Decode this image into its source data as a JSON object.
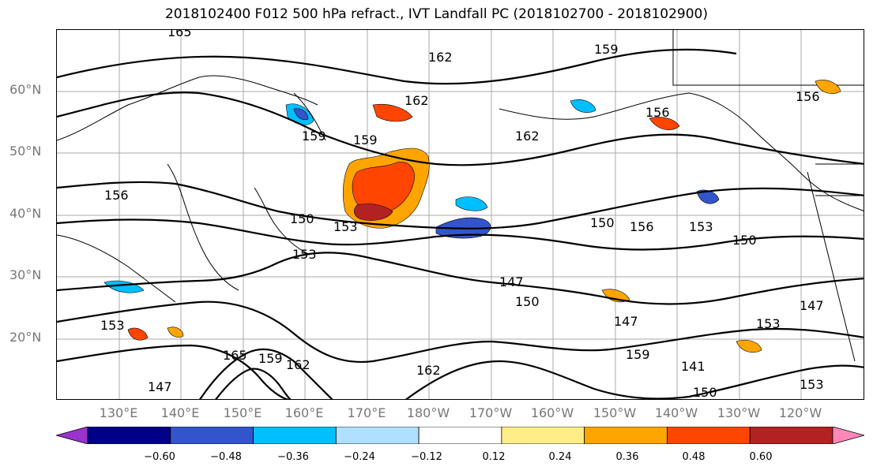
{
  "title": "2018102400 F012 500 hPa refract., IVT Landfall PC (2018102700 - 2018102900)",
  "map": {
    "lat_labels": [
      "60°N",
      "50°N",
      "40°N",
      "30°N",
      "20°N"
    ],
    "lon_labels": [
      "130°E",
      "140°E",
      "150°E",
      "160°E",
      "170°E",
      "180°W",
      "170°W",
      "160°W",
      "150°W",
      "140°W",
      "130°W",
      "120°W"
    ],
    "contour_labels": [
      "165",
      "162",
      "159",
      "159",
      "159",
      "162",
      "156",
      "156",
      "162",
      "156",
      "153",
      "150",
      "153",
      "150",
      "153",
      "156",
      "147",
      "150",
      "147",
      "153",
      "147",
      "165",
      "159",
      "162",
      "162",
      "147",
      "153",
      "150",
      "141",
      "159",
      "150",
      "153"
    ],
    "colors": {
      "positive": [
        "#ffee88",
        "#ffa500",
        "#ff4500",
        "#b22222",
        "#ff88b8"
      ],
      "negative": [
        "#9933cc",
        "#000088",
        "#3355cc",
        "#00bfff",
        "#b0e0ff"
      ],
      "contour": "#000000",
      "grid": "#aaaaaa"
    }
  },
  "colorbar": {
    "tick_labels": [
      "−0.60",
      "−0.48",
      "−0.36",
      "−0.24",
      "−0.12",
      "0.12",
      "0.24",
      "0.36",
      "0.48",
      "0.60"
    ],
    "colors": [
      "#9933cc",
      "#000088",
      "#3355cc",
      "#00bfff",
      "#b0e0ff",
      "#ffffff",
      "#ffee88",
      "#ffa500",
      "#ff4500",
      "#b22222",
      "#ff88b8"
    ]
  }
}
